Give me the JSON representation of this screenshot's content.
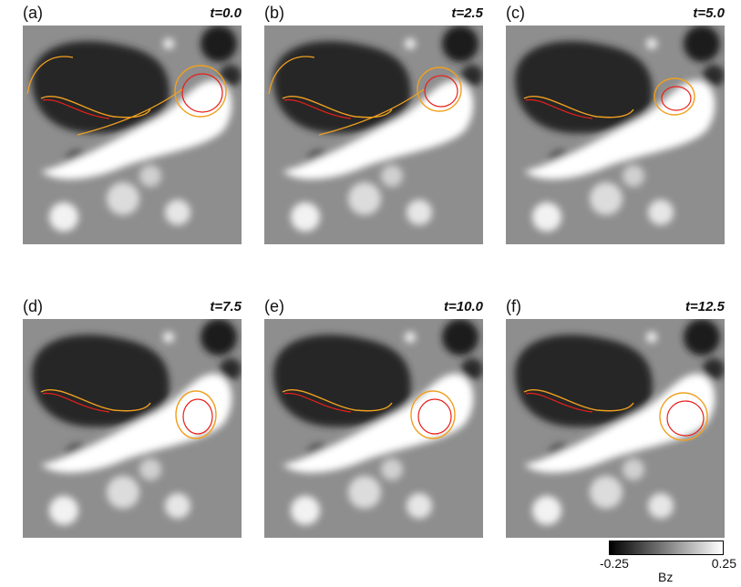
{
  "panels": [
    {
      "letter": "(a)",
      "time": "t=0.0"
    },
    {
      "letter": "(b)",
      "time": "t=2.5"
    },
    {
      "letter": "(c)",
      "time": "t=5.0"
    },
    {
      "letter": "(d)",
      "time": "t=7.5"
    },
    {
      "letter": "(e)",
      "time": "t=10.0"
    },
    {
      "letter": "(f)",
      "time": "t=12.5"
    }
  ],
  "colorbar": {
    "min": "-0.25",
    "max": "0.25",
    "label": "Bz",
    "colors": [
      "#000000",
      "#ffffff"
    ]
  },
  "contour_colors": {
    "inner": "#e8201a",
    "outer": "#f0a020"
  }
}
